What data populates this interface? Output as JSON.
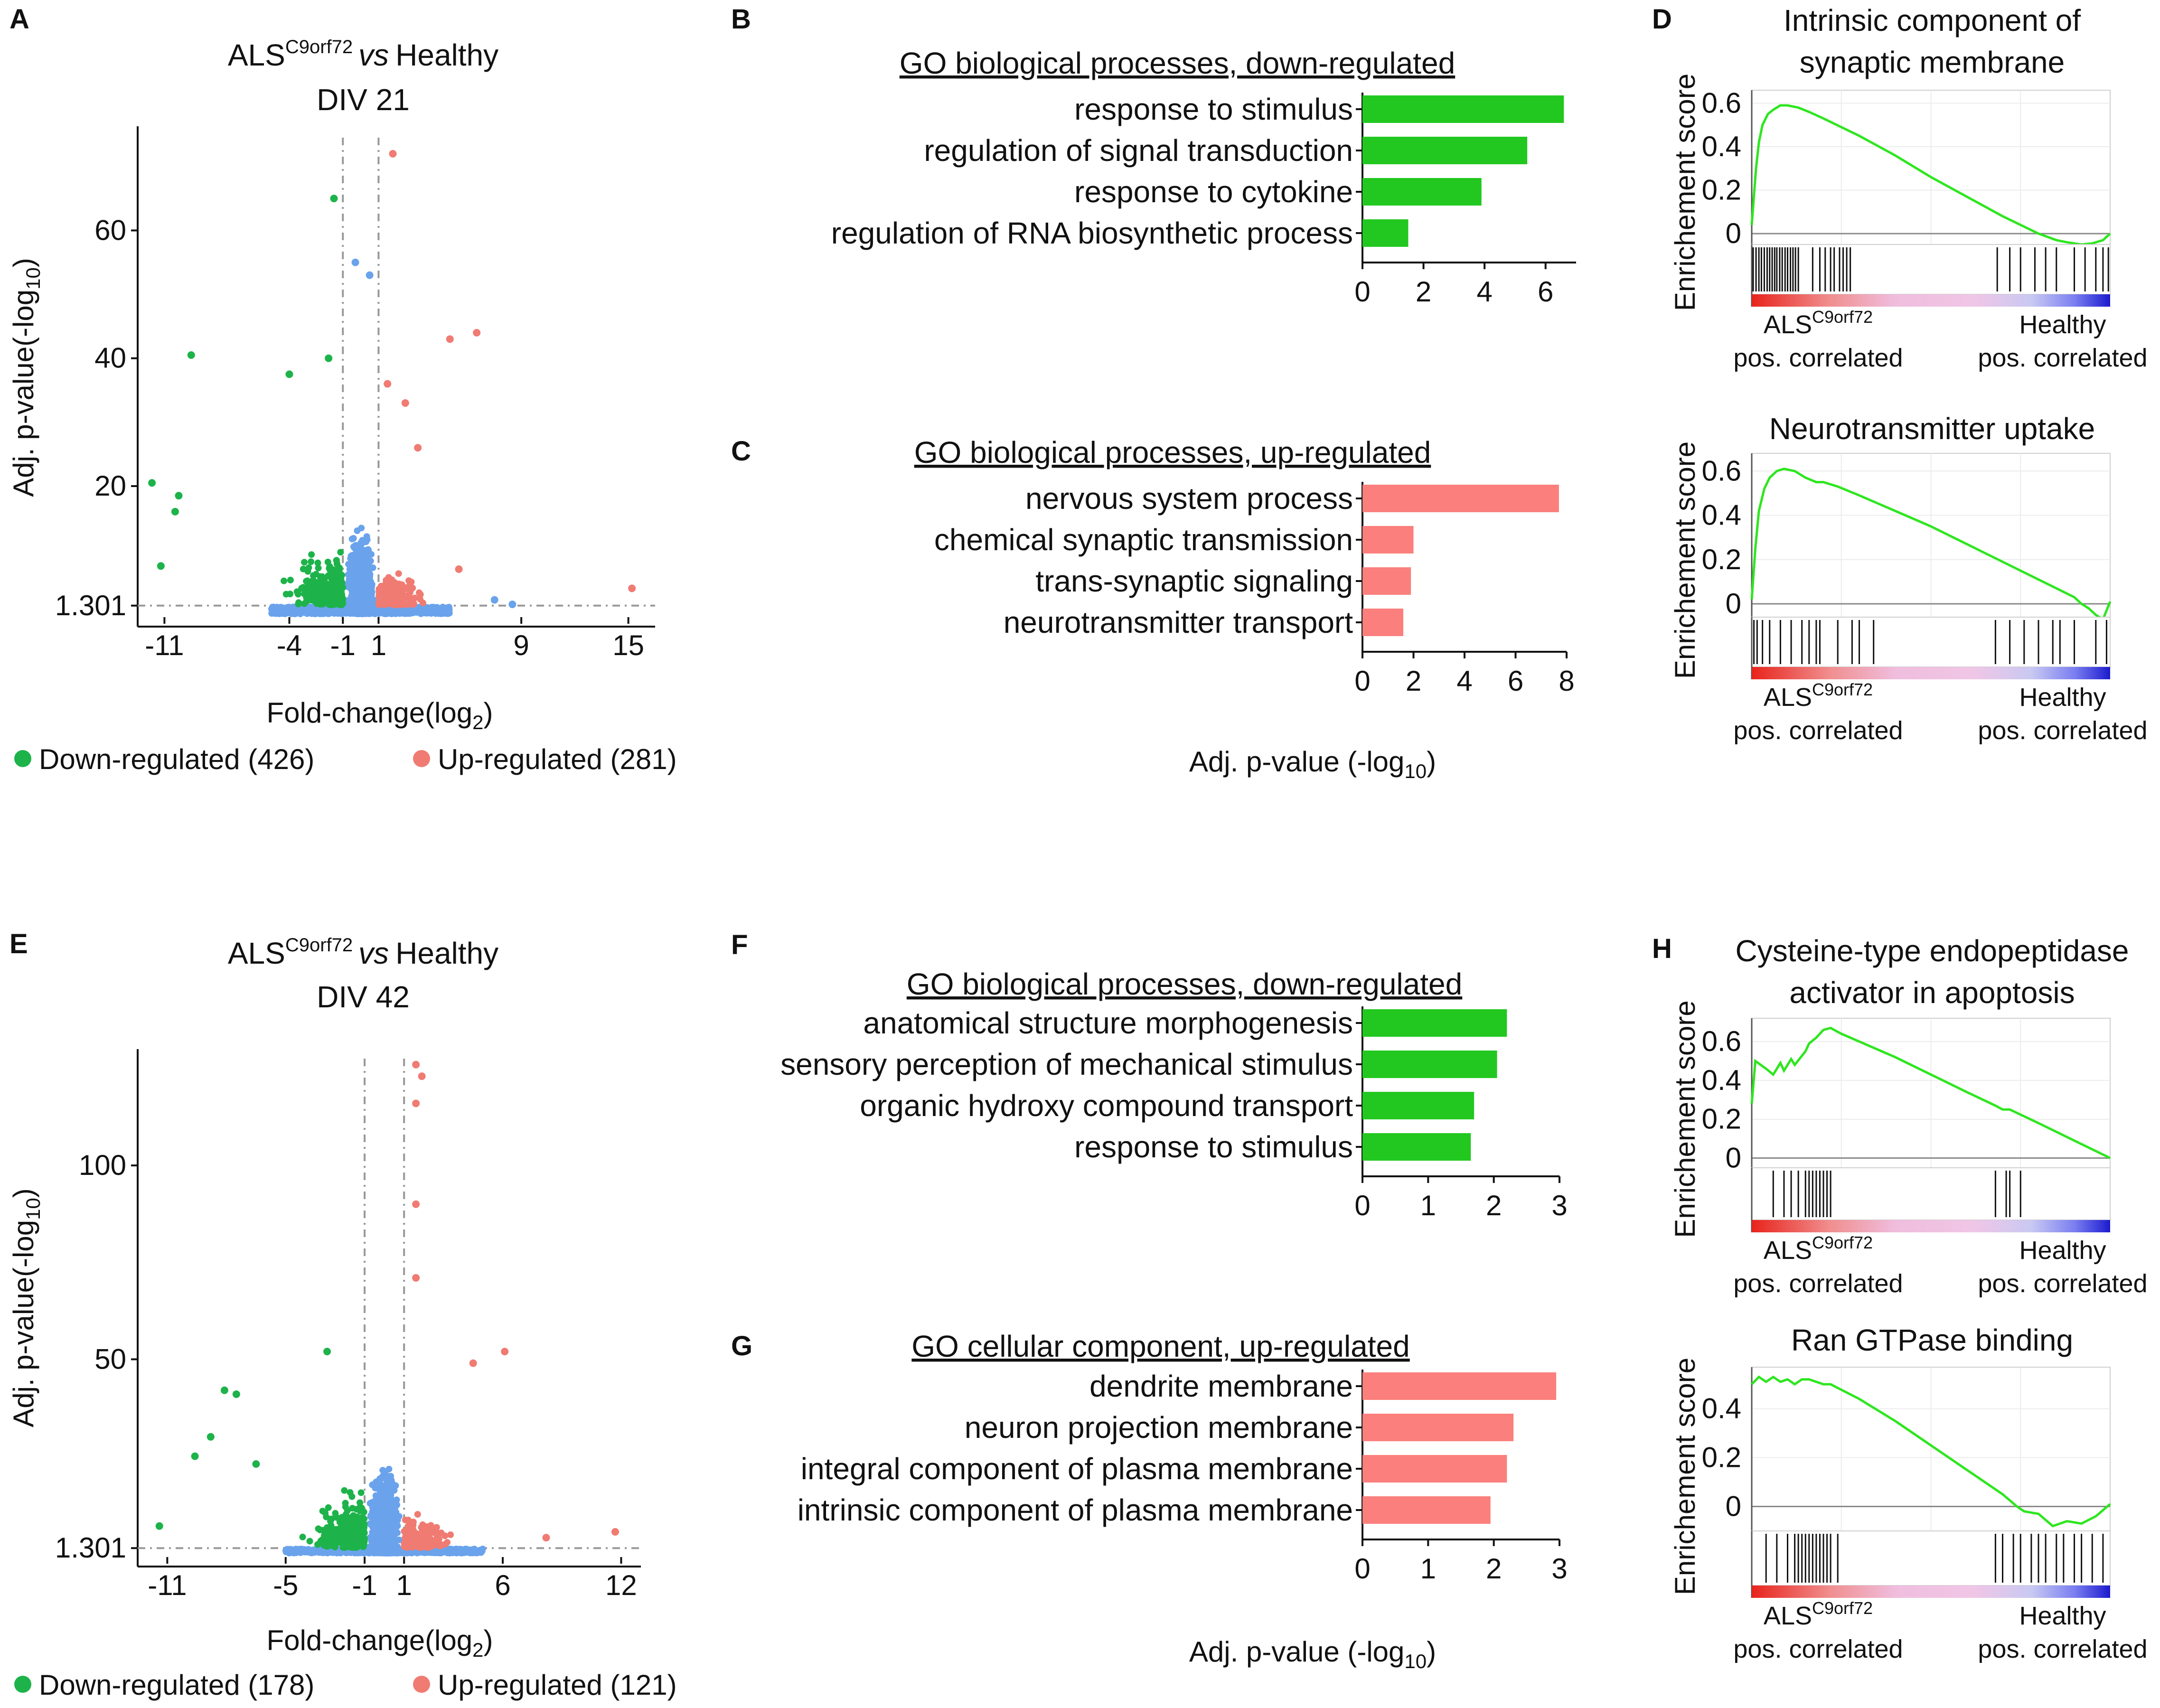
{
  "colors": {
    "down": "#1db34a",
    "up": "#f07b72",
    "ns": "#6aa3ec",
    "bar_down": "#22c81f",
    "bar_up": "#fb7f7c",
    "gsea_line": "#2ee61f",
    "red_text": "#e8241c",
    "blue_text": "#2342d8"
  },
  "panels": {
    "A": {
      "letter": "A",
      "title_main": "ALS",
      "title_sup": "C9orf72",
      "title_vs": "vs",
      "title_tail": "Healthy",
      "title_line2": "DIV 21",
      "ylabel": "Adj. p-value(-log",
      "ylabel_sub": "10",
      "ylabel_end": ")",
      "xlabel": "Fold-change(log",
      "xlabel_sub": "2",
      "xlabel_end": ")",
      "yticks": [
        "60",
        "40",
        "20",
        "1.301"
      ],
      "xticks": [
        "-11",
        "-4",
        "-1",
        "1",
        "9",
        "15"
      ],
      "legend_down": "Down-regulated (426)",
      "legend_up": "Up-regulated (281)"
    },
    "E": {
      "letter": "E",
      "title_main": "ALS",
      "title_sup": "C9orf72",
      "title_vs": "vs",
      "title_tail": "Healthy",
      "title_line2": "DIV 42",
      "ylabel": "Adj. p-value(-log",
      "ylabel_sub": "10",
      "ylabel_end": ")",
      "xlabel": "Fold-change(log",
      "xlabel_sub": "2",
      "xlabel_end": ")",
      "yticks": [
        "100",
        "50",
        "1.301"
      ],
      "xticks": [
        "-11",
        "-5",
        "-1",
        "1",
        "6",
        "12"
      ],
      "legend_down": "Down-regulated (178)",
      "legend_up": "Up-regulated (121)"
    },
    "B": {
      "letter": "B",
      "title": "GO biological processes, down-regulated"
    },
    "C": {
      "letter": "C",
      "title": "GO biological processes, up-regulated",
      "xlabel": "Adj. p-value (-log",
      "xlabel_sub": "10",
      "xlabel_end": ")"
    },
    "F": {
      "letter": "F",
      "title": "GO biological processes, down-regulated"
    },
    "G": {
      "letter": "G",
      "title": "GO cellular component, up-regulated",
      "xlabel": "Adj. p-value (-log",
      "xlabel_sub": "10",
      "xlabel_end": ")"
    },
    "D": {
      "letter": "D"
    },
    "H": {
      "letter": "H"
    },
    "gsea_common": {
      "ylabel": "Enrichement score",
      "als": "ALS",
      "als_sup": "C9orf72",
      "healthy": "Healthy",
      "pos": "pos. correlated"
    }
  },
  "chart_data": [
    {
      "id": "A",
      "type": "scatter",
      "title": "ALSC9orf72 vs Healthy DIV 21",
      "xlabel": "Fold-change(log2)",
      "ylabel": "Adj. p-value(-log10)",
      "xlim": [
        -12.5,
        16.5
      ],
      "ylim": [
        -0.5,
        76
      ],
      "xticks": [
        -11,
        -4,
        -1,
        1,
        9,
        15
      ],
      "yticks": [
        1.301,
        20,
        40,
        60
      ],
      "thresholds": {
        "fc": [
          -1,
          1
        ],
        "p": 1.301
      },
      "down_count": 426,
      "up_count": 281,
      "highlight_points": [
        {
          "x": 1.8,
          "y": 72,
          "group": "up"
        },
        {
          "x": -1.5,
          "y": 65,
          "group": "down"
        },
        {
          "x": -0.3,
          "y": 55,
          "group": "ns"
        },
        {
          "x": 0.5,
          "y": 53,
          "group": "ns"
        },
        {
          "x": 6.5,
          "y": 44,
          "group": "up"
        },
        {
          "x": 5,
          "y": 43,
          "group": "up"
        },
        {
          "x": -9.5,
          "y": 40.5,
          "group": "down"
        },
        {
          "x": -4,
          "y": 37.5,
          "group": "down"
        },
        {
          "x": -1.8,
          "y": 40,
          "group": "down"
        },
        {
          "x": 1.5,
          "y": 36,
          "group": "up"
        },
        {
          "x": 2.5,
          "y": 33,
          "group": "up"
        },
        {
          "x": 3.2,
          "y": 26,
          "group": "up"
        },
        {
          "x": -11.7,
          "y": 20.5,
          "group": "down"
        },
        {
          "x": -10.2,
          "y": 18.5,
          "group": "down"
        },
        {
          "x": -10.4,
          "y": 16,
          "group": "down"
        },
        {
          "x": -11.2,
          "y": 7.5,
          "group": "down"
        },
        {
          "x": 15.2,
          "y": 4,
          "group": "up"
        },
        {
          "x": 5.5,
          "y": 7,
          "group": "up"
        },
        {
          "x": 8.5,
          "y": 1.5,
          "group": "ns"
        },
        {
          "x": 7.5,
          "y": 2.2,
          "group": "ns"
        }
      ]
    },
    {
      "id": "E",
      "type": "scatter",
      "title": "ALSC9orf72 vs Healthy DIV 42",
      "xlabel": "Fold-change(log2)",
      "ylabel": "Adj. p-value(-log10)",
      "xlim": [
        -12.5,
        13
      ],
      "ylim": [
        -1,
        130
      ],
      "xticks": [
        -11,
        -5,
        -1,
        1,
        6,
        12
      ],
      "yticks": [
        1.301,
        50,
        100
      ],
      "thresholds": {
        "fc": [
          -1,
          1
        ],
        "p": 1.301
      },
      "down_count": 178,
      "up_count": 121,
      "highlight_points": [
        {
          "x": 1.6,
          "y": 126,
          "group": "up"
        },
        {
          "x": 1.9,
          "y": 123,
          "group": "up"
        },
        {
          "x": 1.6,
          "y": 116,
          "group": "up"
        },
        {
          "x": 1.6,
          "y": 90,
          "group": "up"
        },
        {
          "x": 1.6,
          "y": 71,
          "group": "up"
        },
        {
          "x": 6.1,
          "y": 52,
          "group": "up"
        },
        {
          "x": 4.5,
          "y": 49,
          "group": "up"
        },
        {
          "x": -2.9,
          "y": 52,
          "group": "down"
        },
        {
          "x": -8.1,
          "y": 42,
          "group": "down"
        },
        {
          "x": -7.5,
          "y": 41,
          "group": "down"
        },
        {
          "x": -8.8,
          "y": 30,
          "group": "down"
        },
        {
          "x": -9.6,
          "y": 25,
          "group": "down"
        },
        {
          "x": -6.5,
          "y": 23,
          "group": "down"
        },
        {
          "x": -11.4,
          "y": 7,
          "group": "down"
        },
        {
          "x": 11.7,
          "y": 5.5,
          "group": "up"
        },
        {
          "x": 8.2,
          "y": 4,
          "group": "up"
        }
      ]
    },
    {
      "id": "B",
      "type": "bar",
      "orientation": "horizontal",
      "title": "GO biological processes, down-regulated",
      "categories": [
        "response to stimulus",
        "regulation of signal transduction",
        "response to cytokine",
        "regulation of RNA biosynthetic process"
      ],
      "values": [
        6.6,
        5.4,
        3.9,
        1.5
      ],
      "xlim": [
        0,
        7
      ],
      "xticks": [
        0,
        2,
        4,
        6
      ],
      "xlabel": ""
    },
    {
      "id": "C",
      "type": "bar",
      "orientation": "horizontal",
      "title": "GO biological processes, up-regulated",
      "categories": [
        "nervous system process",
        "chemical synaptic transmission",
        "trans-synaptic signaling",
        "neurotransmitter transport"
      ],
      "values": [
        7.7,
        2.0,
        1.9,
        1.6
      ],
      "xlim": [
        0,
        8
      ],
      "xticks": [
        0,
        2,
        4,
        6,
        8
      ],
      "xlabel": "Adj. p-value (-log10)"
    },
    {
      "id": "F",
      "type": "bar",
      "orientation": "horizontal",
      "title": "GO biological processes, down-regulated",
      "categories": [
        "anatomical structure morphogenesis",
        "sensory perception of mechanical stimulus",
        "organic hydroxy compound transport",
        "response to stimulus"
      ],
      "values": [
        2.2,
        2.05,
        1.7,
        1.65
      ],
      "xlim": [
        0,
        3
      ],
      "xticks": [
        0,
        1,
        2,
        3
      ],
      "xlabel": ""
    },
    {
      "id": "G",
      "type": "bar",
      "orientation": "horizontal",
      "title": "GO cellular component, up-regulated",
      "categories": [
        "dendrite membrane",
        "neuron projection membrane",
        "integral component of plasma membrane",
        "intrinsic component of plasma membrane"
      ],
      "values": [
        2.95,
        2.3,
        2.2,
        1.95
      ],
      "xlim": [
        0,
        3
      ],
      "xticks": [
        0,
        1,
        2,
        3
      ],
      "xlabel": "Adj. p-value (-log10)"
    },
    {
      "id": "D1",
      "type": "line",
      "title": "Intrinsic component of synaptic membrane",
      "ylabel": "Enrichement score",
      "ylim": [
        -0.05,
        0.66
      ],
      "yticks": [
        0,
        0.2,
        0.4,
        0.6
      ],
      "x": [
        0,
        0.005,
        0.012,
        0.02,
        0.03,
        0.045,
        0.06,
        0.08,
        0.1,
        0.13,
        0.16,
        0.2,
        0.25,
        0.3,
        0.4,
        0.5,
        0.6,
        0.7,
        0.8,
        0.85,
        0.88,
        0.92,
        0.95,
        0.98,
        1.0
      ],
      "y": [
        0.04,
        0.15,
        0.3,
        0.42,
        0.5,
        0.55,
        0.57,
        0.59,
        0.59,
        0.58,
        0.56,
        0.53,
        0.49,
        0.45,
        0.36,
        0.26,
        0.17,
        0.08,
        0.0,
        -0.03,
        -0.04,
        -0.05,
        -0.045,
        -0.03,
        0.0
      ],
      "hits": [
        0.004,
        0.012,
        0.02,
        0.027,
        0.035,
        0.043,
        0.05,
        0.057,
        0.064,
        0.07,
        0.078,
        0.085,
        0.093,
        0.1,
        0.108,
        0.115,
        0.122,
        0.13,
        0.17,
        0.19,
        0.205,
        0.22,
        0.23,
        0.245,
        0.255,
        0.265,
        0.275,
        0.685,
        0.72,
        0.75,
        0.79,
        0.82,
        0.85,
        0.9,
        0.93,
        0.96,
        0.98,
        0.995
      ]
    },
    {
      "id": "D2",
      "type": "line",
      "title": "Neurotransmitter uptake",
      "ylabel": "Enrichement score",
      "ylim": [
        -0.06,
        0.68
      ],
      "yticks": [
        0,
        0.2,
        0.4,
        0.6
      ],
      "x": [
        0,
        0.01,
        0.02,
        0.035,
        0.05,
        0.07,
        0.09,
        0.12,
        0.15,
        0.18,
        0.2,
        0.24,
        0.3,
        0.4,
        0.5,
        0.6,
        0.7,
        0.8,
        0.9,
        0.92,
        0.94,
        0.96,
        0.98,
        0.99,
        1.0
      ],
      "y": [
        0.02,
        0.25,
        0.42,
        0.52,
        0.57,
        0.6,
        0.61,
        0.6,
        0.57,
        0.55,
        0.55,
        0.53,
        0.49,
        0.42,
        0.35,
        0.27,
        0.19,
        0.11,
        0.03,
        0.0,
        -0.02,
        -0.05,
        -0.07,
        -0.03,
        0.01
      ],
      "hits": [
        0.006,
        0.015,
        0.03,
        0.05,
        0.08,
        0.11,
        0.14,
        0.16,
        0.18,
        0.19,
        0.24,
        0.28,
        0.3,
        0.34,
        0.68,
        0.72,
        0.76,
        0.8,
        0.84,
        0.86,
        0.9,
        0.96,
        0.99
      ]
    },
    {
      "id": "H1",
      "type": "line",
      "title": "Cysteine-type endopeptidase activator in apoptosis",
      "ylabel": "Enrichement score",
      "ylim": [
        -0.05,
        0.72
      ],
      "yticks": [
        0,
        0.2,
        0.4,
        0.6
      ],
      "x": [
        0,
        0.01,
        0.04,
        0.06,
        0.08,
        0.09,
        0.11,
        0.12,
        0.15,
        0.16,
        0.18,
        0.2,
        0.22,
        0.25,
        0.3,
        0.4,
        0.5,
        0.6,
        0.68,
        0.7,
        0.72,
        0.8,
        0.9,
        1.0
      ],
      "y": [
        0.28,
        0.5,
        0.46,
        0.43,
        0.49,
        0.45,
        0.51,
        0.48,
        0.55,
        0.59,
        0.62,
        0.66,
        0.67,
        0.64,
        0.6,
        0.52,
        0.43,
        0.34,
        0.27,
        0.25,
        0.25,
        0.18,
        0.09,
        0.0
      ],
      "hits": [
        0.06,
        0.09,
        0.11,
        0.13,
        0.15,
        0.16,
        0.17,
        0.18,
        0.19,
        0.2,
        0.21,
        0.22,
        0.68,
        0.71,
        0.72,
        0.75
      ]
    },
    {
      "id": "H2",
      "type": "line",
      "title": "Ran GTPase binding",
      "ylabel": "Enrichement score",
      "ylim": [
        -0.1,
        0.57
      ],
      "yticks": [
        0,
        0.2,
        0.4
      ],
      "x": [
        0,
        0.02,
        0.04,
        0.06,
        0.08,
        0.1,
        0.12,
        0.14,
        0.16,
        0.18,
        0.2,
        0.22,
        0.3,
        0.4,
        0.5,
        0.6,
        0.7,
        0.74,
        0.76,
        0.8,
        0.84,
        0.88,
        0.92,
        0.96,
        1.0
      ],
      "y": [
        0.5,
        0.53,
        0.51,
        0.53,
        0.51,
        0.52,
        0.5,
        0.52,
        0.52,
        0.51,
        0.5,
        0.5,
        0.44,
        0.35,
        0.25,
        0.15,
        0.05,
        0.0,
        -0.02,
        -0.03,
        -0.08,
        -0.06,
        -0.07,
        -0.04,
        0.01
      ],
      "hits": [
        0.04,
        0.07,
        0.1,
        0.12,
        0.13,
        0.14,
        0.15,
        0.16,
        0.17,
        0.18,
        0.19,
        0.2,
        0.21,
        0.22,
        0.24,
        0.68,
        0.7,
        0.73,
        0.75,
        0.78,
        0.8,
        0.82,
        0.85,
        0.87,
        0.9,
        0.92,
        0.95,
        0.98
      ]
    }
  ]
}
